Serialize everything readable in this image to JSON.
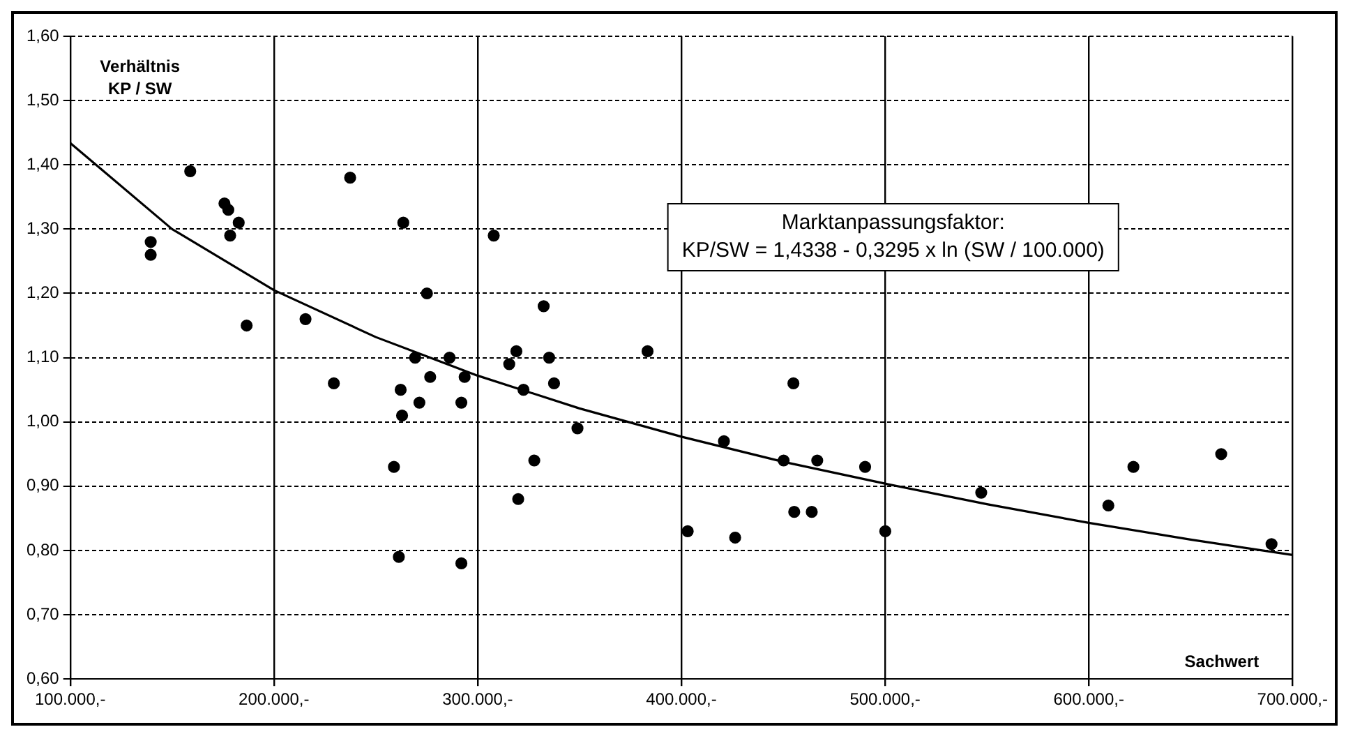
{
  "chart_data": {
    "type": "scatter",
    "xlabel": "Sachwert",
    "ylabel": "Verhältnis KP / SW",
    "xlim": [
      100000,
      700000
    ],
    "xticks": [
      {
        "value": 100000,
        "label": "100.000,-"
      },
      {
        "value": 200000,
        "label": "200.000,-"
      },
      {
        "value": 300000,
        "label": "300.000,-"
      },
      {
        "value": 400000,
        "label": "400.000,-"
      },
      {
        "value": 500000,
        "label": "500.000,-"
      },
      {
        "value": 600000,
        "label": "600.000,-"
      },
      {
        "value": 700000,
        "label": "700.000,-"
      }
    ],
    "ylim": [
      0.6,
      1.6
    ],
    "yticks": [
      {
        "value": 0.6,
        "label": "0,60"
      },
      {
        "value": 0.7,
        "label": "0,70"
      },
      {
        "value": 0.8,
        "label": "0,80"
      },
      {
        "value": 0.9,
        "label": "0,90"
      },
      {
        "value": 1.0,
        "label": "1,00"
      },
      {
        "value": 1.1,
        "label": "1,10"
      },
      {
        "value": 1.2,
        "label": "1,20"
      },
      {
        "value": 1.3,
        "label": "1,30"
      },
      {
        "value": 1.4,
        "label": "1,40"
      },
      {
        "value": 1.5,
        "label": "1,50"
      },
      {
        "value": 1.6,
        "label": "1,60"
      }
    ],
    "grid": true,
    "legend": false,
    "series": [
      {
        "type": "scatter",
        "color": "#000000",
        "marker": "circle",
        "x": [
          139500,
          139500,
          158900,
          175700,
          177600,
          182700,
          178500,
          186600,
          215500,
          229400,
          237400,
          263500,
          275100,
          269300,
          286200,
          276700,
          293600,
          262200,
          271400,
          292000,
          262900,
          258900,
          261300,
          292000,
          307900,
          332400,
          319000,
          315500,
          335100,
          337500,
          322500,
          349000,
          327800,
          319900,
          383400,
          403100,
          420900,
          426400,
          450200,
          466700,
          490200,
          455400,
          464000,
          500100,
          547200,
          609600,
          621900,
          665000,
          689700,
          455000
        ],
        "values": [
          1.28,
          1.26,
          1.39,
          1.34,
          1.33,
          1.31,
          1.29,
          1.15,
          1.16,
          1.06,
          1.38,
          1.31,
          1.2,
          1.1,
          1.1,
          1.07,
          1.07,
          1.05,
          1.03,
          1.03,
          1.01,
          0.93,
          0.79,
          0.78,
          1.29,
          1.18,
          1.11,
          1.09,
          1.1,
          1.06,
          1.05,
          0.99,
          0.94,
          0.88,
          1.11,
          0.83,
          0.97,
          0.82,
          0.94,
          0.94,
          0.93,
          0.86,
          0.86,
          0.83,
          0.89,
          0.87,
          0.93,
          0.95,
          0.81,
          1.06
        ]
      },
      {
        "type": "line",
        "color": "#000000",
        "marker": "none",
        "line_style": "solid",
        "x": [
          100000,
          150000,
          200000,
          250000,
          300000,
          350000,
          400000,
          450000,
          500000,
          550000,
          600000,
          650000,
          700000
        ],
        "values": [
          1.434,
          1.3,
          1.205,
          1.132,
          1.072,
          1.021,
          0.977,
          0.938,
          0.904,
          0.872,
          0.843,
          0.817,
          0.793
        ]
      }
    ],
    "annotations": [
      "Marktanpassungsfaktor:",
      "KP/SW = 1,4338 - 0,3295 x ln (SW / 100.000)"
    ]
  }
}
